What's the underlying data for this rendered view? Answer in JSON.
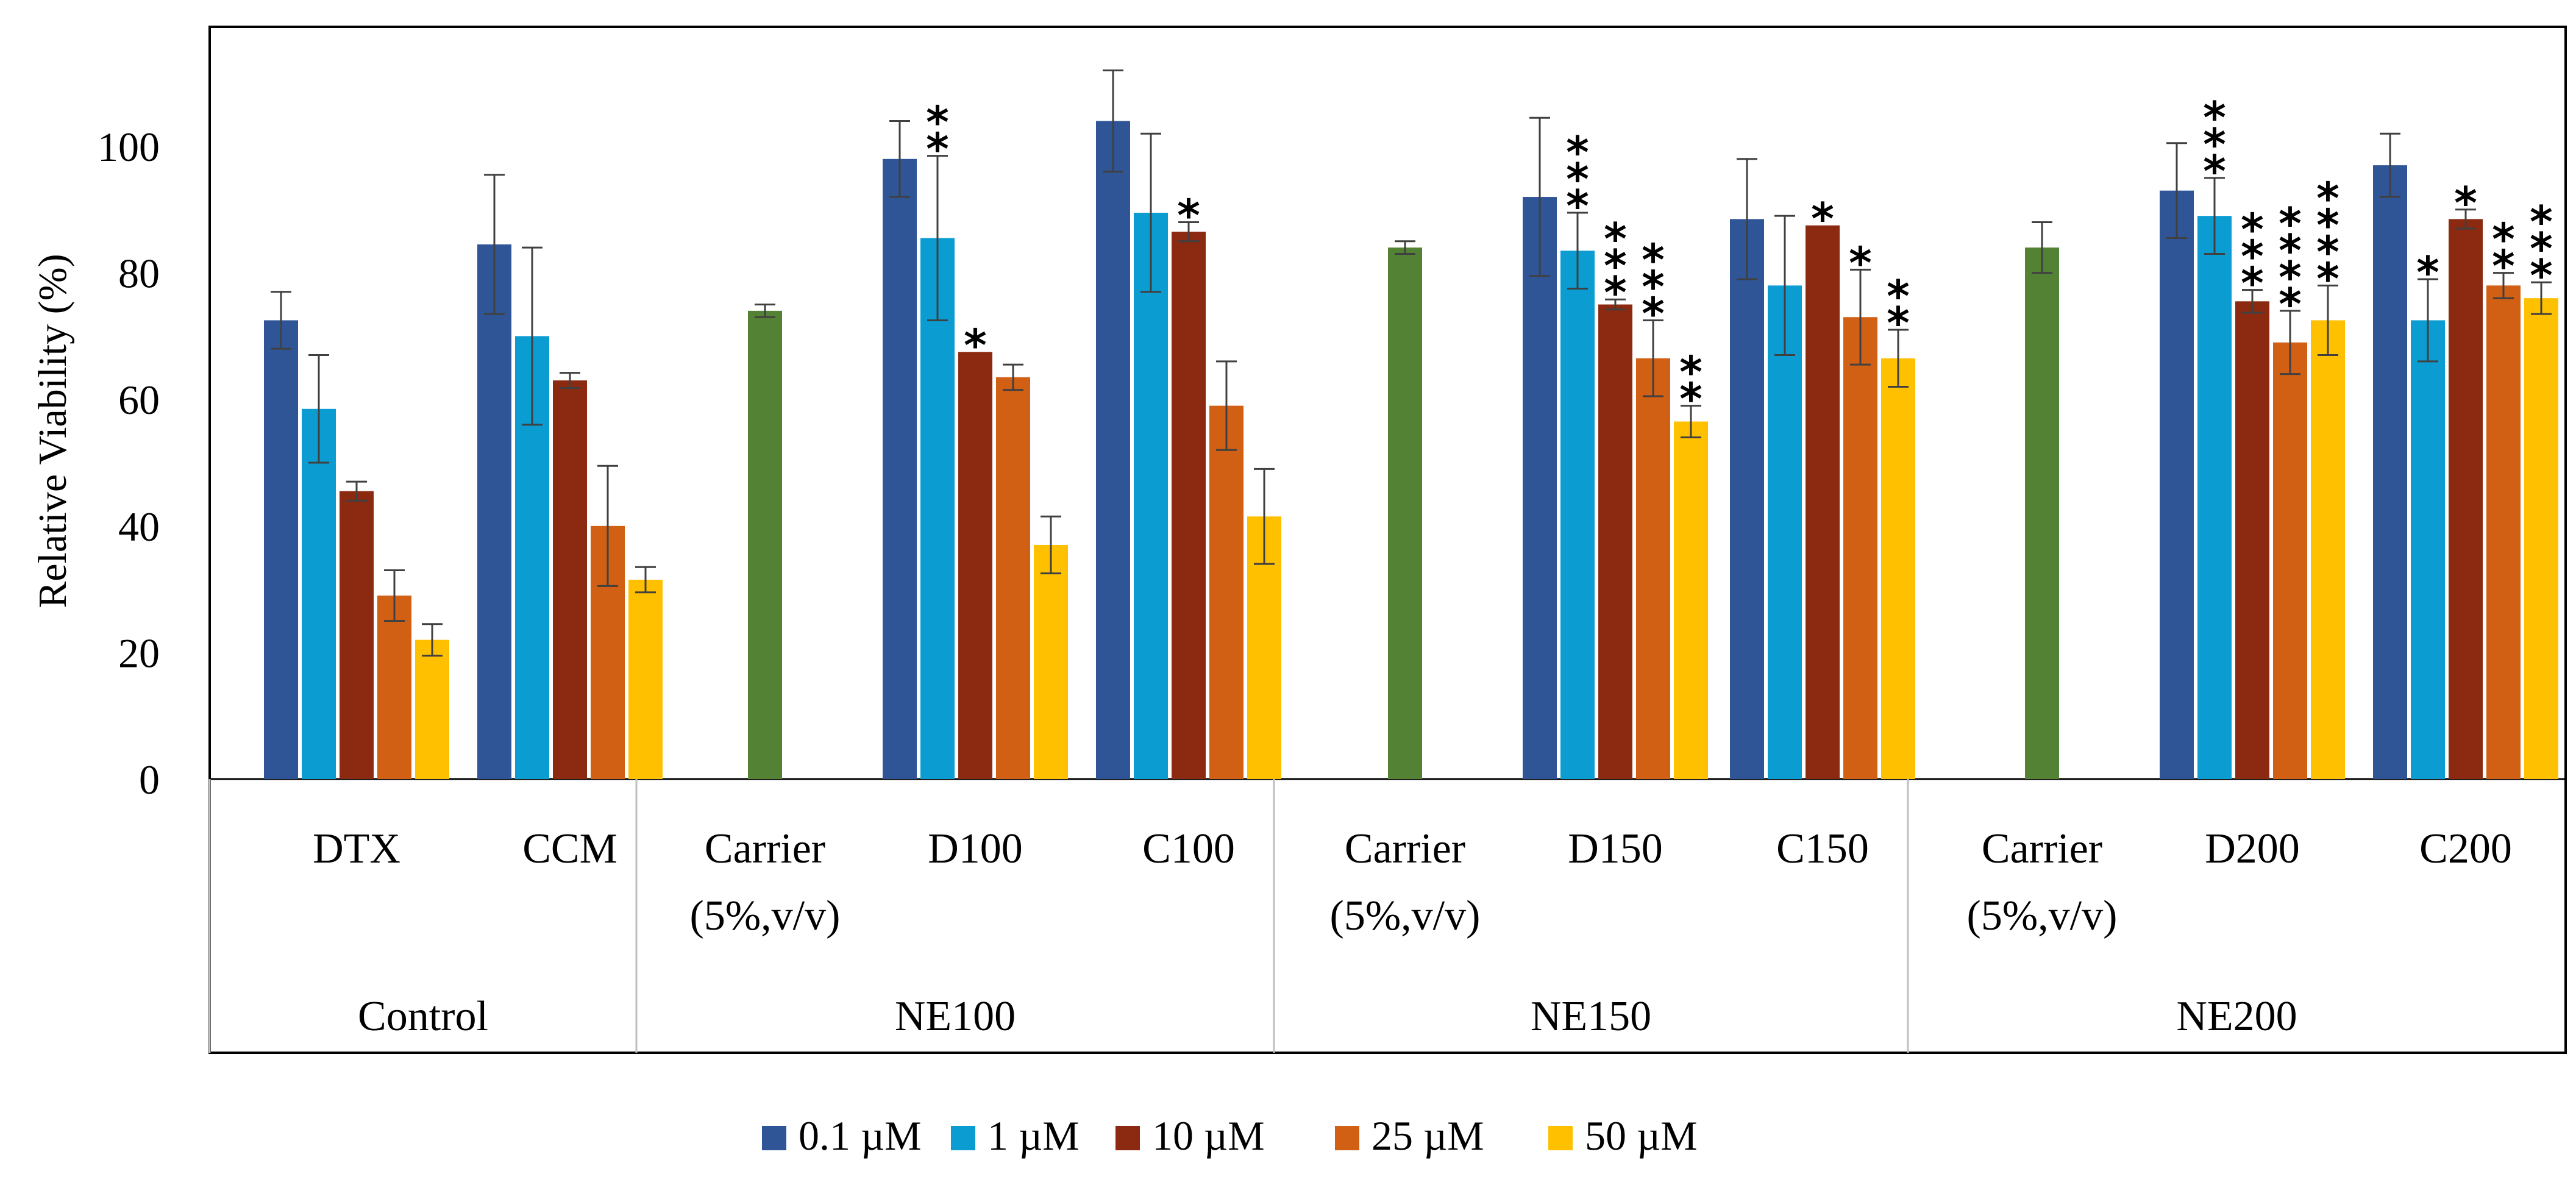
{
  "chart_data": {
    "type": "bar",
    "title": "",
    "xlabel": "",
    "ylabel": "Relative Viability (%)",
    "ylim": [
      0,
      115
    ],
    "yticks": [
      0,
      20,
      40,
      60,
      80,
      100
    ],
    "legend_position": "bottom",
    "grid": false,
    "series": [
      {
        "name": "0.1 µM",
        "color": "#2F5597"
      },
      {
        "name": "1 µM",
        "color": "#0B9CD1"
      },
      {
        "name": "10 µM",
        "color": "#8B2A10"
      },
      {
        "name": "25 µM",
        "color": "#D15F14"
      },
      {
        "name": "50 µM",
        "color": "#FFC000"
      }
    ],
    "carrier_color": "#548235",
    "groups": [
      {
        "label": "Control",
        "categories": [
          {
            "label": [
              "DTX"
            ],
            "bars": [
              {
                "series": 0,
                "value": 72.5,
                "err": 4.5,
                "sig": ""
              },
              {
                "series": 1,
                "value": 58.5,
                "err": 8.5,
                "sig": ""
              },
              {
                "series": 2,
                "value": 45.5,
                "err": 1.5,
                "sig": ""
              },
              {
                "series": 3,
                "value": 29,
                "err": 4,
                "sig": ""
              },
              {
                "series": 4,
                "value": 22,
                "err": 2.5,
                "sig": ""
              }
            ]
          },
          {
            "label": [
              "CCM"
            ],
            "bars": [
              {
                "series": 0,
                "value": 84.5,
                "err": 11,
                "sig": ""
              },
              {
                "series": 1,
                "value": 70,
                "err": 14,
                "sig": ""
              },
              {
                "series": 2,
                "value": 63,
                "err": 1.2,
                "sig": ""
              },
              {
                "series": 3,
                "value": 40,
                "err": 9.5,
                "sig": ""
              },
              {
                "series": 4,
                "value": 31.5,
                "err": 2,
                "sig": ""
              }
            ]
          }
        ]
      },
      {
        "label": "NE100",
        "categories": [
          {
            "label": [
              "Carrier",
              "(5%,v/v)"
            ],
            "bars": [
              {
                "series": "carrier",
                "value": 74,
                "err": 1,
                "sig": ""
              }
            ]
          },
          {
            "label": [
              "D100"
            ],
            "bars": [
              {
                "series": 0,
                "value": 98,
                "err": 6,
                "sig": ""
              },
              {
                "series": 1,
                "value": 85.5,
                "err": 13,
                "sig": "**"
              },
              {
                "series": 2,
                "value": 67.5,
                "err": 0,
                "sig": "*"
              },
              {
                "series": 3,
                "value": 63.5,
                "err": 2,
                "sig": ""
              },
              {
                "series": 4,
                "value": 37,
                "err": 4.5,
                "sig": ""
              }
            ]
          },
          {
            "label": [
              "C100"
            ],
            "bars": [
              {
                "series": 0,
                "value": 104,
                "err": 8,
                "sig": ""
              },
              {
                "series": 1,
                "value": 89.5,
                "err": 12.5,
                "sig": ""
              },
              {
                "series": 2,
                "value": 86.5,
                "err": 1.5,
                "sig": "*"
              },
              {
                "series": 3,
                "value": 59,
                "err": 7,
                "sig": ""
              },
              {
                "series": 4,
                "value": 41.5,
                "err": 7.5,
                "sig": ""
              }
            ]
          }
        ]
      },
      {
        "label": "NE150",
        "categories": [
          {
            "label": [
              "Carrier",
              "(5%,v/v)"
            ],
            "bars": [
              {
                "series": "carrier",
                "value": 84,
                "err": 1,
                "sig": ""
              }
            ]
          },
          {
            "label": [
              "D150"
            ],
            "bars": [
              {
                "series": 0,
                "value": 92,
                "err": 12.5,
                "sig": ""
              },
              {
                "series": 1,
                "value": 83.5,
                "err": 6,
                "sig": "***"
              },
              {
                "series": 2,
                "value": 75,
                "err": 0.8,
                "sig": "***"
              },
              {
                "series": 3,
                "value": 66.5,
                "err": 6,
                "sig": "***"
              },
              {
                "series": 4,
                "value": 56.5,
                "err": 2.5,
                "sig": "**"
              }
            ]
          },
          {
            "label": [
              "C150"
            ],
            "bars": [
              {
                "series": 0,
                "value": 88.5,
                "err": 9.5,
                "sig": ""
              },
              {
                "series": 1,
                "value": 78,
                "err": 11,
                "sig": ""
              },
              {
                "series": 2,
                "value": 87.5,
                "err": 0,
                "sig": "*"
              },
              {
                "series": 3,
                "value": 73,
                "err": 7.5,
                "sig": "*"
              },
              {
                "series": 4,
                "value": 66.5,
                "err": 4.5,
                "sig": "**"
              }
            ]
          }
        ]
      },
      {
        "label": "NE200",
        "categories": [
          {
            "label": [
              "Carrier",
              "(5%,v/v)"
            ],
            "bars": [
              {
                "series": "carrier",
                "value": 84,
                "err": 4,
                "sig": ""
              }
            ]
          },
          {
            "label": [
              "D200"
            ],
            "bars": [
              {
                "series": 0,
                "value": 93,
                "err": 7.5,
                "sig": ""
              },
              {
                "series": 1,
                "value": 89,
                "err": 6,
                "sig": "***"
              },
              {
                "series": 2,
                "value": 75.5,
                "err": 1.8,
                "sig": "***"
              },
              {
                "series": 3,
                "value": 69,
                "err": 5,
                "sig": "****"
              },
              {
                "series": 4,
                "value": 72.5,
                "err": 5.5,
                "sig": "****"
              }
            ]
          },
          {
            "label": [
              "C200"
            ],
            "bars": [
              {
                "series": 0,
                "value": 97,
                "err": 5,
                "sig": ""
              },
              {
                "series": 1,
                "value": 72.5,
                "err": 6.5,
                "sig": "*"
              },
              {
                "series": 2,
                "value": 88.5,
                "err": 1.5,
                "sig": "*"
              },
              {
                "series": 3,
                "value": 78,
                "err": 2,
                "sig": "**"
              },
              {
                "series": 4,
                "value": 76,
                "err": 2.5,
                "sig": "***"
              }
            ]
          }
        ]
      }
    ]
  }
}
